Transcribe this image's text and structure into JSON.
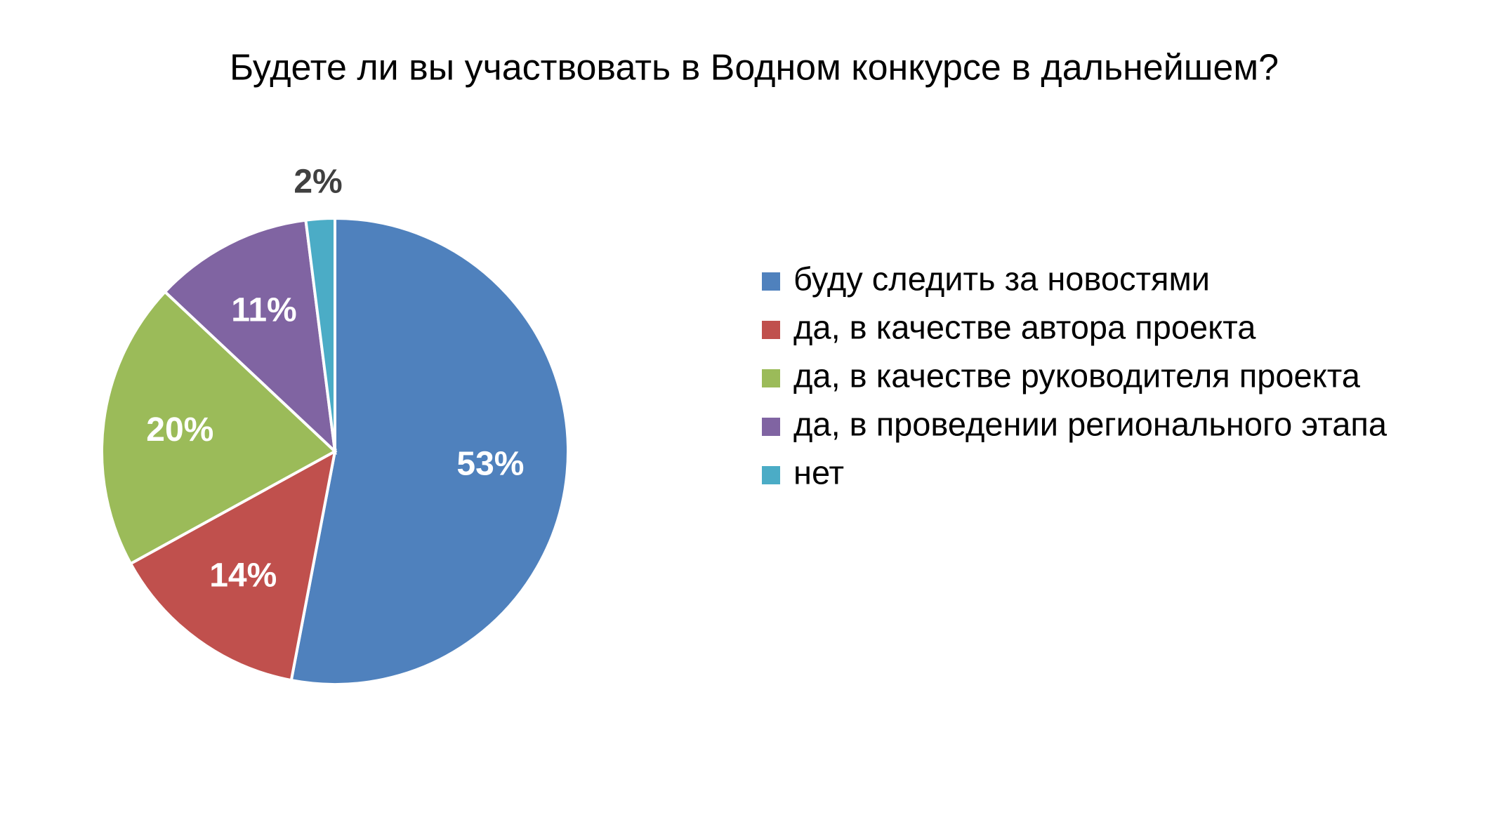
{
  "chart_data": {
    "type": "pie",
    "title": "Будете ли вы участвовать в Водном конкурсе в дальнейшем?",
    "categories": [
      "буду следить за новостями",
      "да, в качестве автора проекта",
      "да, в качестве руководителя проекта",
      "да, в проведении регионального этапа",
      "нет"
    ],
    "values": [
      53,
      14,
      20,
      11,
      2
    ],
    "value_labels": [
      "53%",
      "14%",
      "20%",
      "11%",
      "2%"
    ],
    "colors": [
      "#4f81bd",
      "#c0504d",
      "#9bbb59",
      "#8064a2",
      "#4bacc6"
    ],
    "legend": "right"
  }
}
